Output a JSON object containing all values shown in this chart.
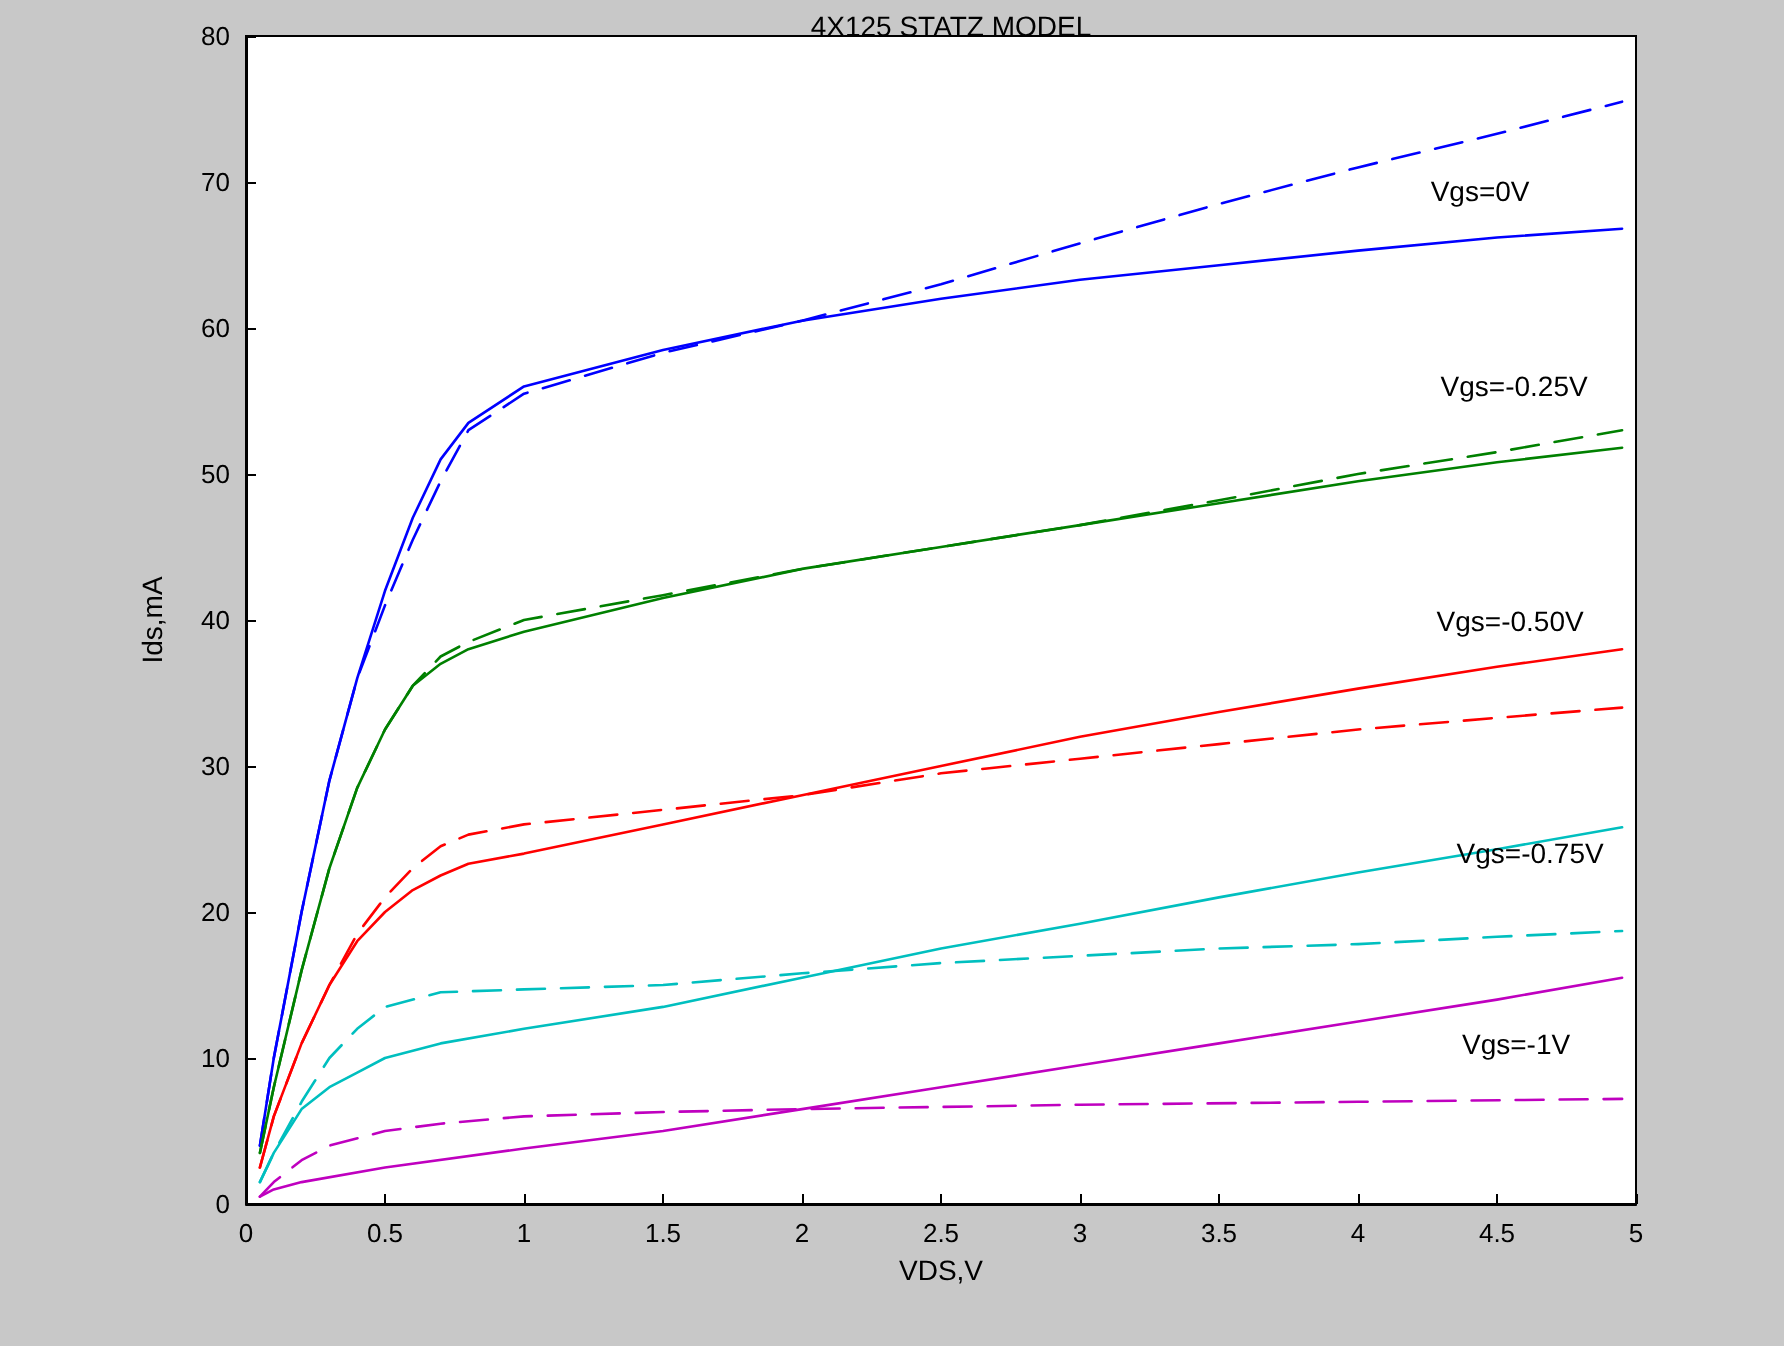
{
  "chart_data": {
    "type": "line",
    "title": "4X125 STATZ MODEL",
    "xlabel": "VDS,V",
    "ylabel": "Ids,mA",
    "xlim": [
      0,
      5
    ],
    "xticks": [
      0,
      0.5,
      1,
      1.5,
      2,
      2.5,
      3,
      3.5,
      4,
      4.5,
      5
    ],
    "ylim": [
      0,
      80
    ],
    "yticks": [
      0,
      10,
      20,
      30,
      40,
      50,
      60,
      70,
      80
    ],
    "grid": false,
    "marker": "none",
    "series": [
      {
        "name": "Vgs=0V",
        "color": "#0000ff",
        "line_style": "solid",
        "x": [
          0.05,
          0.1,
          0.2,
          0.3,
          0.4,
          0.5,
          0.6,
          0.7,
          0.8,
          1.0,
          1.5,
          2,
          2.5,
          3,
          3.5,
          4,
          4.5,
          4.95
        ],
        "values": [
          4,
          10,
          20,
          29,
          36,
          42,
          47,
          51,
          53.5,
          56,
          58.5,
          60.5,
          62,
          63.3,
          64.3,
          65.3,
          66.2,
          66.8
        ]
      },
      {
        "color": "#0000ff",
        "line_style": "dashed",
        "x": [
          0.05,
          0.1,
          0.2,
          0.3,
          0.4,
          0.5,
          0.6,
          0.7,
          0.8,
          1.0,
          1.5,
          2,
          2.5,
          3,
          3.5,
          4,
          4.5,
          4.95
        ],
        "values": [
          4,
          10,
          20,
          29,
          36,
          41,
          45.5,
          49.5,
          53,
          55.5,
          58.3,
          60.5,
          63,
          65.8,
          68.5,
          71,
          73.3,
          75.5
        ]
      },
      {
        "name": "Vgs=-0.25V",
        "color": "#008000",
        "line_style": "solid",
        "x": [
          0.05,
          0.1,
          0.2,
          0.3,
          0.4,
          0.5,
          0.6,
          0.7,
          0.8,
          1.0,
          1.5,
          2,
          2.5,
          3,
          3.5,
          4,
          4.5,
          4.95
        ],
        "values": [
          3.5,
          8,
          16,
          23,
          28.5,
          32.5,
          35.5,
          37,
          38,
          39.2,
          41.5,
          43.5,
          45,
          46.5,
          48,
          49.5,
          50.8,
          51.8
        ]
      },
      {
        "color": "#008000",
        "line_style": "dashed",
        "x": [
          0.05,
          0.1,
          0.2,
          0.3,
          0.4,
          0.5,
          0.6,
          0.7,
          0.8,
          1.0,
          1.5,
          2,
          2.5,
          3,
          3.5,
          4,
          4.5,
          4.95
        ],
        "values": [
          3.5,
          8,
          16,
          23,
          28.5,
          32.5,
          35.5,
          37.5,
          38.5,
          40,
          41.7,
          43.5,
          45,
          46.5,
          48.2,
          50,
          51.5,
          53
        ]
      },
      {
        "name": "Vgs=-0.50V",
        "color": "#ff0000",
        "line_style": "solid",
        "x": [
          0.05,
          0.1,
          0.2,
          0.3,
          0.4,
          0.5,
          0.6,
          0.7,
          0.8,
          1.0,
          1.5,
          2,
          2.5,
          3,
          3.5,
          4,
          4.5,
          4.95
        ],
        "values": [
          2.5,
          6,
          11,
          15,
          18,
          20,
          21.5,
          22.5,
          23.3,
          24,
          26,
          28,
          30,
          32,
          33.7,
          35.3,
          36.8,
          38
        ]
      },
      {
        "color": "#ff0000",
        "line_style": "dashed",
        "x": [
          0.05,
          0.1,
          0.2,
          0.3,
          0.4,
          0.5,
          0.6,
          0.7,
          0.8,
          1.0,
          1.5,
          2,
          2.5,
          3,
          3.5,
          4,
          4.5,
          4.95
        ],
        "values": [
          2.5,
          6,
          11,
          15,
          18.5,
          21,
          23,
          24.5,
          25.3,
          26,
          27,
          28,
          29.5,
          30.5,
          31.5,
          32.5,
          33.3,
          34
        ]
      },
      {
        "name": "Vgs=-0.75V",
        "color": "#00bfbf",
        "line_style": "solid",
        "x": [
          0.05,
          0.1,
          0.2,
          0.3,
          0.4,
          0.5,
          0.7,
          1.0,
          1.5,
          2,
          2.5,
          3,
          3.5,
          4,
          4.5,
          4.95
        ],
        "values": [
          1.5,
          3.5,
          6.5,
          8,
          9,
          10,
          11,
          12,
          13.5,
          15.5,
          17.5,
          19.2,
          21,
          22.7,
          24.3,
          25.8
        ]
      },
      {
        "color": "#00bfbf",
        "line_style": "dashed",
        "x": [
          0.05,
          0.1,
          0.2,
          0.3,
          0.4,
          0.5,
          0.7,
          1.0,
          1.5,
          2,
          2.5,
          3,
          3.5,
          4,
          4.5,
          4.95
        ],
        "values": [
          1.5,
          3.5,
          7,
          10,
          12,
          13.5,
          14.5,
          14.7,
          15,
          15.8,
          16.5,
          17,
          17.5,
          17.8,
          18.3,
          18.7
        ]
      },
      {
        "name": "Vgs=-1V",
        "color": "#bf00bf",
        "line_style": "solid",
        "x": [
          0.05,
          0.1,
          0.2,
          0.5,
          1.0,
          1.5,
          2,
          2.5,
          3,
          3.5,
          4,
          4.5,
          4.95
        ],
        "values": [
          0.5,
          1,
          1.5,
          2.5,
          3.8,
          5,
          6.5,
          8,
          9.5,
          11,
          12.5,
          14,
          15.5
        ]
      },
      {
        "color": "#bf00bf",
        "line_style": "dashed",
        "x": [
          0.05,
          0.1,
          0.2,
          0.3,
          0.5,
          0.7,
          1.0,
          1.5,
          2,
          3,
          4,
          4.95
        ],
        "values": [
          0.5,
          1.5,
          3,
          4,
          5,
          5.5,
          6,
          6.3,
          6.5,
          6.8,
          7,
          7.2
        ]
      }
    ]
  }
}
